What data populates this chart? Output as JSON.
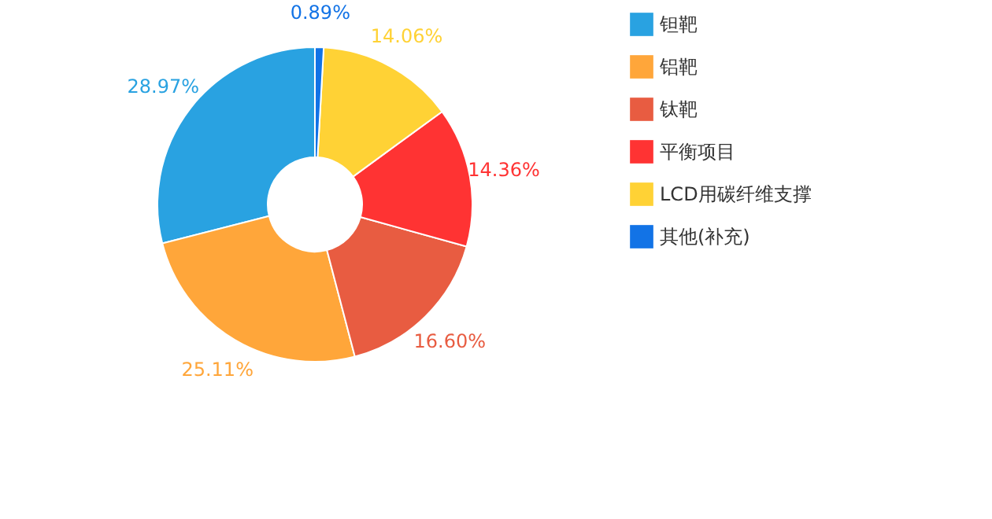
{
  "chart_data": {
    "type": "donut",
    "categories": [
      "钽靶",
      "铝靶",
      "钛靶",
      "平衡项目",
      "LCD用碳纤维支撑",
      "其他(补充)"
    ],
    "values": [
      28.97,
      25.11,
      16.6,
      14.36,
      14.06,
      0.89
    ],
    "colors": [
      "#29a2e1",
      "#ffa63a",
      "#e85c41",
      "#ff3333",
      "#ffd235",
      "#1273e6"
    ],
    "value_labels": [
      "28.97%",
      "25.11%",
      "16.60%",
      "14.36%",
      "14.06%",
      "0.89%"
    ],
    "legend": "right"
  }
}
